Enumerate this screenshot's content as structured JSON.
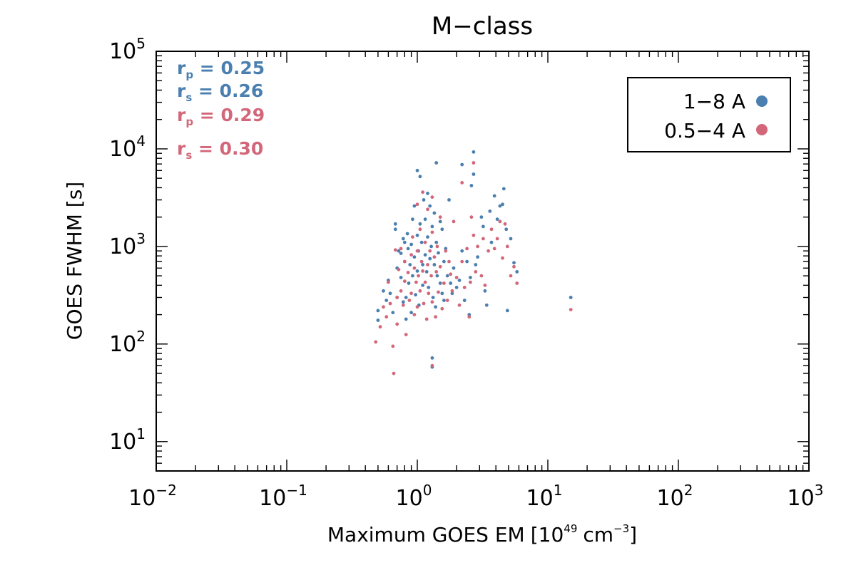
{
  "chart_data": {
    "type": "scatter",
    "title": "M−class",
    "xlabel": {
      "main": "Maximum GOES EM",
      "unit_base": "10",
      "unit_exp": "49",
      "unit_cm": "cm",
      "unit_cm_exp": "−3"
    },
    "ylabel": "GOES FWHM [s]",
    "x_scale": "log",
    "y_scale": "log",
    "xlim": [
      0.01,
      1000
    ],
    "ylim": [
      5,
      100000
    ],
    "x_ticks": [
      {
        "value": 0.01,
        "base": "10",
        "exp": "−2"
      },
      {
        "value": 0.1,
        "base": "10",
        "exp": "−1"
      },
      {
        "value": 1,
        "base": "10",
        "exp": "0"
      },
      {
        "value": 10,
        "base": "10",
        "exp": "1"
      },
      {
        "value": 100,
        "base": "10",
        "exp": "2"
      },
      {
        "value": 1000,
        "base": "10",
        "exp": "3"
      }
    ],
    "y_ticks": [
      {
        "value": 10,
        "base": "10",
        "exp": "1"
      },
      {
        "value": 100,
        "base": "10",
        "exp": "2"
      },
      {
        "value": 1000,
        "base": "10",
        "exp": "3"
      },
      {
        "value": 10000,
        "base": "10",
        "exp": "4"
      },
      {
        "value": 100000,
        "base": "10",
        "exp": "5"
      }
    ],
    "legend": {
      "placement": "top-right",
      "entries": [
        {
          "label": "1−8 A",
          "color": "#4a7fb0"
        },
        {
          "label": "0.5−4 A",
          "color": "#d3677a"
        }
      ]
    },
    "annotations": [
      {
        "base": "r",
        "sub": "p",
        "text": " = 0.25",
        "color": "#4a7fb0"
      },
      {
        "base": "r",
        "sub": "s",
        "text": " = 0.26",
        "color": "#4a7fb0"
      },
      {
        "base": "r",
        "sub": "p",
        "text": " = 0.29",
        "color": "#d3677a"
      },
      {
        "base": "r",
        "sub": "s",
        "text": " = 0.30",
        "color": "#d3677a"
      }
    ],
    "series": [
      {
        "name": "1−8 A",
        "color": "#4a7fb0",
        "points": [
          [
            0.5,
            220
          ],
          [
            0.5,
            175
          ],
          [
            0.55,
            350
          ],
          [
            0.58,
            280
          ],
          [
            0.6,
            450
          ],
          [
            0.62,
            330
          ],
          [
            0.65,
            210
          ],
          [
            0.68,
            1500
          ],
          [
            0.68,
            1700
          ],
          [
            0.7,
            300
          ],
          [
            0.7,
            600
          ],
          [
            0.72,
            900
          ],
          [
            0.75,
            850
          ],
          [
            0.75,
            480
          ],
          [
            0.78,
            1200
          ],
          [
            0.78,
            270
          ],
          [
            0.8,
            1100
          ],
          [
            0.8,
            700
          ],
          [
            0.82,
            300
          ],
          [
            0.82,
            180
          ],
          [
            0.84,
            1350
          ],
          [
            0.85,
            950
          ],
          [
            0.86,
            420
          ],
          [
            0.88,
            650
          ],
          [
            0.9,
            1050
          ],
          [
            0.9,
            210
          ],
          [
            0.92,
            1900
          ],
          [
            0.92,
            500
          ],
          [
            0.95,
            2600
          ],
          [
            0.95,
            780
          ],
          [
            0.97,
            320
          ],
          [
            1.0,
            6000
          ],
          [
            1.0,
            1300
          ],
          [
            1.0,
            560
          ],
          [
            1.02,
            900
          ],
          [
            1.03,
            250
          ],
          [
            1.05,
            5200
          ],
          [
            1.05,
            1700
          ],
          [
            1.08,
            1100
          ],
          [
            1.1,
            650
          ],
          [
            1.1,
            400
          ],
          [
            1.12,
            3000
          ],
          [
            1.15,
            1900
          ],
          [
            1.15,
            820
          ],
          [
            1.18,
            550
          ],
          [
            1.2,
            3500
          ],
          [
            1.2,
            1250
          ],
          [
            1.22,
            380
          ],
          [
            1.25,
            2600
          ],
          [
            1.25,
            750
          ],
          [
            1.28,
            1000
          ],
          [
            1.3,
            72
          ],
          [
            1.3,
            58
          ],
          [
            1.3,
            1600
          ],
          [
            1.32,
            300
          ],
          [
            1.35,
            2200
          ],
          [
            1.35,
            650
          ],
          [
            1.38,
            240
          ],
          [
            1.4,
            7200
          ],
          [
            1.4,
            1100
          ],
          [
            1.42,
            500
          ],
          [
            1.45,
            860
          ],
          [
            1.5,
            1800
          ],
          [
            1.5,
            420
          ],
          [
            1.55,
            330
          ],
          [
            1.55,
            1500
          ],
          [
            1.6,
            280
          ],
          [
            1.6,
            700
          ],
          [
            1.65,
            950
          ],
          [
            1.7,
            500
          ],
          [
            1.75,
            3000
          ],
          [
            1.8,
            420
          ],
          [
            1.85,
            330
          ],
          [
            1.9,
            600
          ],
          [
            2.0,
            380
          ],
          [
            2.1,
            450
          ],
          [
            2.2,
            6900
          ],
          [
            2.2,
            900
          ],
          [
            2.3,
            280
          ],
          [
            2.4,
            700
          ],
          [
            2.5,
            200
          ],
          [
            2.55,
            480
          ],
          [
            2.6,
            4200
          ],
          [
            2.7,
            9300
          ],
          [
            2.7,
            5500
          ],
          [
            2.8,
            650
          ],
          [
            2.9,
            780
          ],
          [
            3.1,
            2000
          ],
          [
            3.2,
            1600
          ],
          [
            3.3,
            350
          ],
          [
            3.4,
            250
          ],
          [
            3.6,
            2300
          ],
          [
            3.7,
            1100
          ],
          [
            3.9,
            3300
          ],
          [
            4.1,
            1900
          ],
          [
            4.3,
            2600
          ],
          [
            4.5,
            2700
          ],
          [
            4.6,
            3900
          ],
          [
            4.8,
            1500
          ],
          [
            4.9,
            220
          ],
          [
            5.2,
            1200
          ],
          [
            5.5,
            680
          ],
          [
            5.8,
            550
          ],
          [
            15,
            300
          ]
        ]
      },
      {
        "name": "0.5−4 A",
        "color": "#d3677a",
        "points": [
          [
            0.48,
            105
          ],
          [
            0.52,
            150
          ],
          [
            0.55,
            240
          ],
          [
            0.58,
            190
          ],
          [
            0.6,
            430
          ],
          [
            0.62,
            260
          ],
          [
            0.65,
            95
          ],
          [
            0.66,
            50
          ],
          [
            0.68,
            920
          ],
          [
            0.7,
            300
          ],
          [
            0.7,
            160
          ],
          [
            0.72,
            580
          ],
          [
            0.75,
            350
          ],
          [
            0.75,
            950
          ],
          [
            0.78,
            250
          ],
          [
            0.8,
            700
          ],
          [
            0.8,
            440
          ],
          [
            0.82,
            125
          ],
          [
            0.85,
            540
          ],
          [
            0.87,
            280
          ],
          [
            0.9,
            820
          ],
          [
            0.9,
            330
          ],
          [
            0.92,
            1250
          ],
          [
            0.95,
            200
          ],
          [
            0.95,
            600
          ],
          [
            0.98,
            430
          ],
          [
            1.0,
            2700
          ],
          [
            1.0,
            900
          ],
          [
            1.0,
            240
          ],
          [
            1.02,
            500
          ],
          [
            1.05,
            1500
          ],
          [
            1.05,
            350
          ],
          [
            1.08,
            700
          ],
          [
            1.1,
            3600
          ],
          [
            1.1,
            560
          ],
          [
            1.12,
            260
          ],
          [
            1.15,
            1100
          ],
          [
            1.15,
            430
          ],
          [
            1.18,
            180
          ],
          [
            1.2,
            2400
          ],
          [
            1.2,
            650
          ],
          [
            1.22,
            330
          ],
          [
            1.25,
            900
          ],
          [
            1.28,
            500
          ],
          [
            1.3,
            3200
          ],
          [
            1.3,
            1400
          ],
          [
            1.3,
            270
          ],
          [
            1.3,
            60
          ],
          [
            1.35,
            780
          ],
          [
            1.38,
            190
          ],
          [
            1.4,
            550
          ],
          [
            1.42,
            1000
          ],
          [
            1.45,
            340
          ],
          [
            1.5,
            2000
          ],
          [
            1.5,
            620
          ],
          [
            1.55,
            230
          ],
          [
            1.6,
            420
          ],
          [
            1.65,
            900
          ],
          [
            1.7,
            280
          ],
          [
            1.75,
            700
          ],
          [
            1.8,
            520
          ],
          [
            1.85,
            350
          ],
          [
            1.9,
            1800
          ],
          [
            2.0,
            480
          ],
          [
            2.1,
            250
          ],
          [
            2.2,
            4500
          ],
          [
            2.2,
            700
          ],
          [
            2.3,
            380
          ],
          [
            2.4,
            950
          ],
          [
            2.5,
            190
          ],
          [
            2.55,
            430
          ],
          [
            2.6,
            2000
          ],
          [
            2.7,
            7200
          ],
          [
            2.7,
            1300
          ],
          [
            2.8,
            550
          ],
          [
            2.9,
            1000
          ],
          [
            3.1,
            500
          ],
          [
            3.2,
            1200
          ],
          [
            3.3,
            400
          ],
          [
            3.5,
            900
          ],
          [
            3.7,
            1500
          ],
          [
            3.9,
            950
          ],
          [
            4.1,
            1200
          ],
          [
            4.3,
            1800
          ],
          [
            4.5,
            760
          ],
          [
            4.7,
            1700
          ],
          [
            4.9,
            1000
          ],
          [
            5.2,
            500
          ],
          [
            5.5,
            620
          ],
          [
            5.8,
            420
          ],
          [
            15,
            225
          ]
        ]
      }
    ]
  }
}
